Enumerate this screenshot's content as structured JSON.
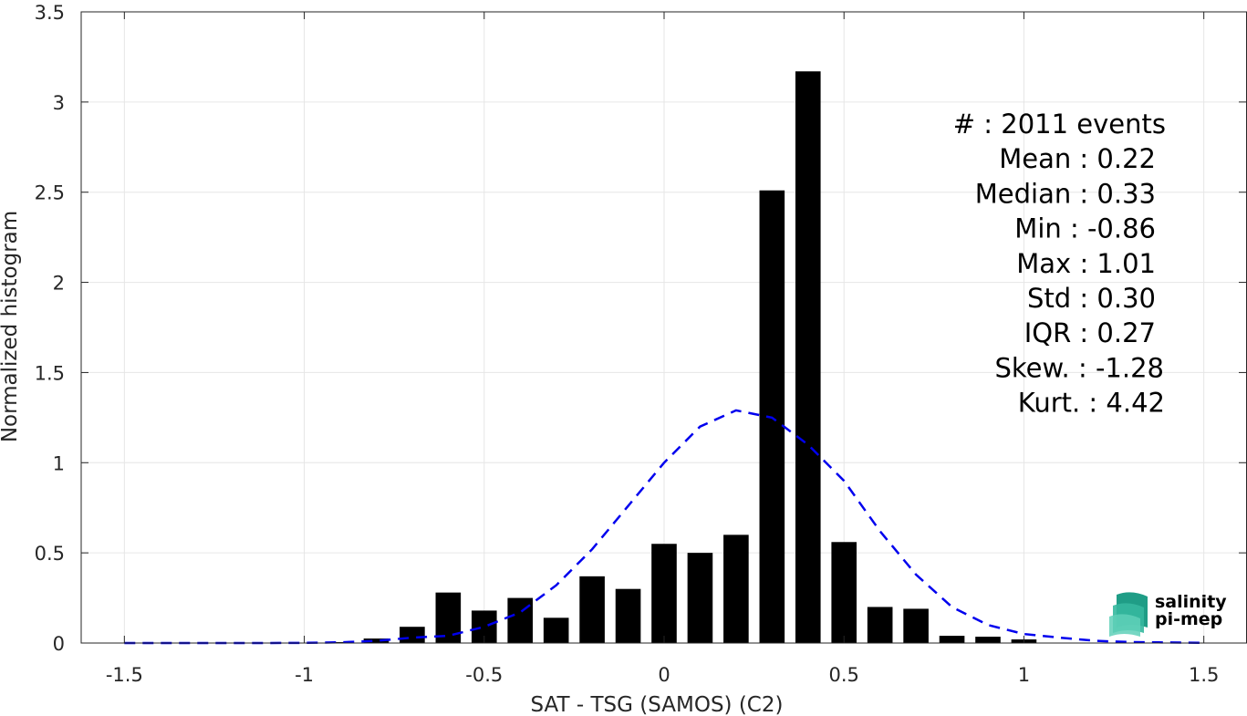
{
  "chart_data": {
    "type": "bar",
    "title": "",
    "xlabel": "SAT - TSG (SAMOS) (C2)",
    "ylabel": "Normalized histogram",
    "xlim": [
      -1.62,
      1.62
    ],
    "ylim": [
      0,
      3.5
    ],
    "grid": true,
    "bar_width": 0.07,
    "x_ticks": [
      -1.5,
      -1,
      -0.5,
      0,
      0.5,
      1,
      1.5
    ],
    "x_tick_labels": [
      "-1.5",
      "-1",
      "-0.5",
      "0",
      "0.5",
      "1",
      "1.5"
    ],
    "y_ticks": [
      0,
      0.5,
      1,
      1.5,
      2,
      2.5,
      3,
      3.5
    ],
    "y_tick_labels": [
      "0",
      "0.5",
      "1",
      "1.5",
      "2",
      "2.5",
      "3",
      "3.5"
    ],
    "bar_color": "#000000",
    "x": [
      -0.9,
      -0.8,
      -0.7,
      -0.6,
      -0.5,
      -0.4,
      -0.3,
      -0.2,
      -0.1,
      0.0,
      0.1,
      0.2,
      0.3,
      0.4,
      0.5,
      0.6,
      0.7,
      0.8,
      0.9,
      1.0
    ],
    "values": [
      0.005,
      0.025,
      0.09,
      0.28,
      0.18,
      0.25,
      0.14,
      0.37,
      0.3,
      0.55,
      0.5,
      0.6,
      2.51,
      3.17,
      0.56,
      0.2,
      0.19,
      0.04,
      0.035,
      0.02
    ],
    "fit_curve": {
      "style": "dashed",
      "color": "#0000ee",
      "x": [
        -1.5,
        -1.3,
        -1.1,
        -1.0,
        -0.9,
        -0.8,
        -0.7,
        -0.6,
        -0.5,
        -0.4,
        -0.3,
        -0.2,
        -0.1,
        0.0,
        0.1,
        0.2,
        0.3,
        0.4,
        0.5,
        0.6,
        0.7,
        0.8,
        0.9,
        1.0,
        1.1,
        1.2,
        1.3,
        1.5
      ],
      "y": [
        0.0,
        0.0,
        0.0,
        0.001,
        0.004,
        0.012,
        0.03,
        0.04,
        0.09,
        0.17,
        0.32,
        0.52,
        0.76,
        1.0,
        1.2,
        1.29,
        1.25,
        1.1,
        0.9,
        0.62,
        0.38,
        0.2,
        0.1,
        0.05,
        0.03,
        0.012,
        0.005,
        0.001
      ]
    },
    "stats": [
      {
        "label": "#",
        "sep": ": 2011 events"
      },
      {
        "label": "Mean",
        "sep": ": 0.22"
      },
      {
        "label": "Median",
        "sep": ": 0.33"
      },
      {
        "label": "Min",
        "sep": ": -0.86"
      },
      {
        "label": "Max",
        "sep": ": 1.01"
      },
      {
        "label": "Std",
        "sep": ": 0.30"
      },
      {
        "label": "IQR",
        "sep": ": 0.27"
      },
      {
        "label": "Skew.",
        "sep": ": -1.28"
      },
      {
        "label": "Kurt.",
        "sep": ": 4.42"
      }
    ]
  },
  "logo": {
    "line1": "salinity",
    "line2": "pi-mep",
    "color": "#1aa58f"
  }
}
